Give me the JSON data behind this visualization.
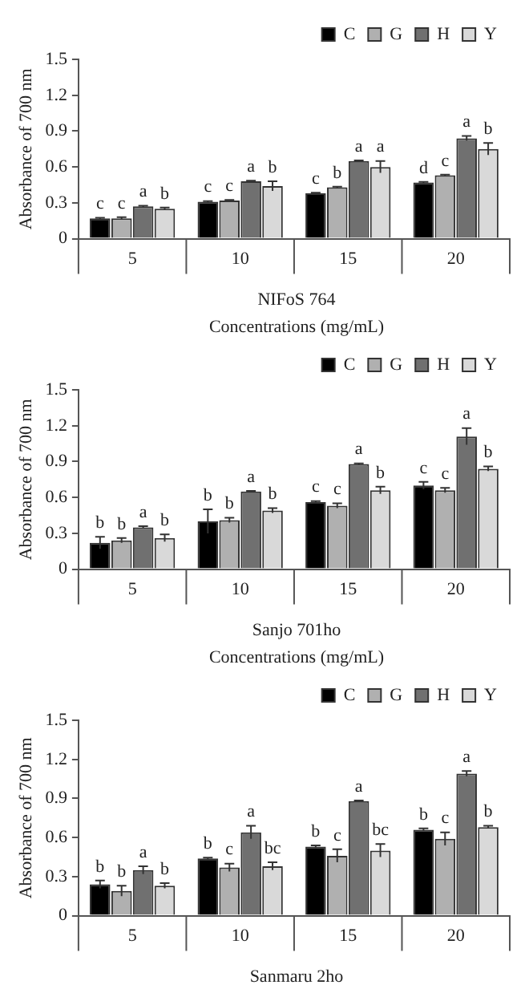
{
  "chart_data": [
    {
      "type": "bar",
      "ylabel": "Absorbance of 700 nm",
      "xlabel": "Concentrations (mg/mL)",
      "annotations": [
        "NIFoS 764"
      ],
      "categories": [
        "5",
        "10",
        "15",
        "20"
      ],
      "ylim": [
        0,
        1.5
      ],
      "yticks": [
        0,
        0.3,
        0.6,
        0.9,
        1.2,
        1.5
      ],
      "grid": false,
      "legend": "top right",
      "series": [
        {
          "name": "C",
          "color": "#000000",
          "values": [
            0.17,
            0.31,
            0.38,
            0.47
          ],
          "errors": [
            0.005,
            0.005,
            0.005,
            0.005
          ],
          "value_labels": [
            "c",
            "c",
            "c",
            "d"
          ]
        },
        {
          "name": "G",
          "color": "#b0b0b0",
          "values": [
            0.17,
            0.32,
            0.43,
            0.53
          ],
          "errors": [
            0.01,
            0.005,
            0.005,
            0.005
          ],
          "value_labels": [
            "c",
            "c",
            "b",
            "c"
          ]
        },
        {
          "name": "H",
          "color": "#707070",
          "values": [
            0.27,
            0.48,
            0.65,
            0.84
          ],
          "errors": [
            0.005,
            0.005,
            0.005,
            0.02
          ],
          "value_labels": [
            "a",
            "a",
            "a",
            "a"
          ]
        },
        {
          "name": "Y",
          "color": "#d9d9d9",
          "values": [
            0.25,
            0.44,
            0.6,
            0.75
          ],
          "errors": [
            0.01,
            0.04,
            0.05,
            0.05
          ],
          "value_labels": [
            "b",
            "b",
            "a",
            "b"
          ]
        }
      ]
    },
    {
      "type": "bar",
      "ylabel": "Absorbance of 700 nm",
      "xlabel": "Concentrations (mg/mL)",
      "annotations": [
        "Sanjo 701ho"
      ],
      "categories": [
        "5",
        "10",
        "15",
        "20"
      ],
      "ylim": [
        0,
        1.5
      ],
      "yticks": [
        0,
        0.3,
        0.6,
        0.9,
        1.2,
        1.5
      ],
      "grid": false,
      "legend": "top right",
      "series": [
        {
          "name": "C",
          "color": "#000000",
          "values": [
            0.22,
            0.4,
            0.56,
            0.7
          ],
          "errors": [
            0.05,
            0.1,
            0.01,
            0.03
          ],
          "value_labels": [
            "b",
            "b",
            "c",
            "c"
          ]
        },
        {
          "name": "G",
          "color": "#b0b0b0",
          "values": [
            0.24,
            0.41,
            0.53,
            0.66
          ],
          "errors": [
            0.02,
            0.02,
            0.02,
            0.02
          ],
          "value_labels": [
            "b",
            "b",
            "c",
            "c"
          ]
        },
        {
          "name": "H",
          "color": "#707070",
          "values": [
            0.35,
            0.65,
            0.88,
            1.11
          ],
          "errors": [
            0.01,
            0.005,
            0.005,
            0.07
          ],
          "value_labels": [
            "a",
            "a",
            "a",
            "a"
          ]
        },
        {
          "name": "Y",
          "color": "#d9d9d9",
          "values": [
            0.26,
            0.49,
            0.66,
            0.84
          ],
          "errors": [
            0.03,
            0.02,
            0.03,
            0.02
          ],
          "value_labels": [
            "b",
            "b",
            "b",
            "b"
          ]
        }
      ]
    },
    {
      "type": "bar",
      "ylabel": "Absorbance of 700 nm",
      "annotations": [
        "Sanmaru 2ho"
      ],
      "categories": [
        "5",
        "10",
        "15",
        "20"
      ],
      "ylim": [
        0,
        1.5
      ],
      "yticks": [
        0,
        0.3,
        0.6,
        0.9,
        1.2,
        1.5
      ],
      "grid": false,
      "legend": "top right",
      "series": [
        {
          "name": "C",
          "color": "#000000",
          "values": [
            0.24,
            0.44,
            0.53,
            0.66
          ],
          "errors": [
            0.03,
            0.005,
            0.01,
            0.01
          ],
          "value_labels": [
            "b",
            "b",
            "b",
            "b"
          ]
        },
        {
          "name": "G",
          "color": "#b0b0b0",
          "values": [
            0.19,
            0.37,
            0.46,
            0.59
          ],
          "errors": [
            0.04,
            0.03,
            0.05,
            0.05
          ],
          "value_labels": [
            "b",
            "c",
            "c",
            "c"
          ]
        },
        {
          "name": "H",
          "color": "#707070",
          "values": [
            0.35,
            0.64,
            0.88,
            1.09
          ],
          "errors": [
            0.03,
            0.05,
            0.005,
            0.02
          ],
          "value_labels": [
            "a",
            "a",
            "a",
            "a"
          ]
        },
        {
          "name": "Y",
          "color": "#d9d9d9",
          "values": [
            0.23,
            0.38,
            0.5,
            0.68
          ],
          "errors": [
            0.02,
            0.03,
            0.05,
            0.01
          ],
          "value_labels": [
            "b",
            "bc",
            "bc",
            "b"
          ]
        }
      ]
    }
  ]
}
